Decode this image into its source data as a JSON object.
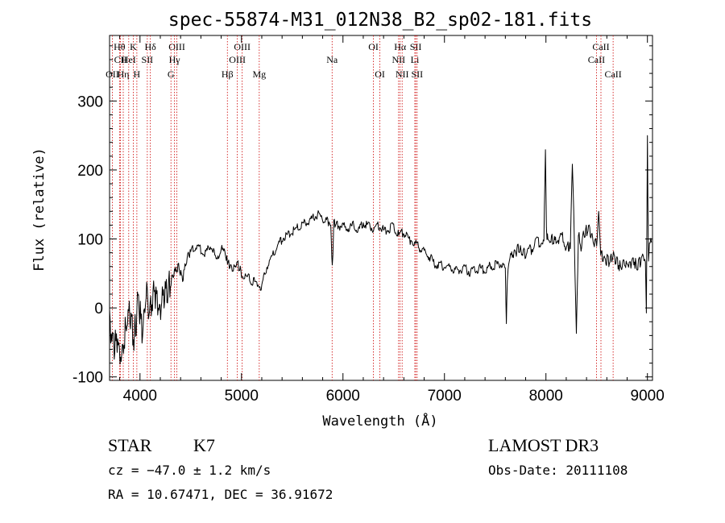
{
  "chart_data": {
    "type": "line",
    "title": "spec-55874-M31_012N38_B2_sp02-181.fits",
    "xlabel": "Wavelength (Å)",
    "ylabel": "Flux (relative)",
    "xlim": [
      3700,
      9050
    ],
    "ylim": [
      -105,
      395
    ],
    "x_ticks": [
      4000,
      5000,
      6000,
      7000,
      8000,
      9000
    ],
    "y_ticks": [
      -100,
      0,
      100,
      200,
      300
    ],
    "grid": false,
    "series": [
      {
        "color": "#000000",
        "x": [
          3700,
          3740,
          3780,
          3820,
          3860,
          3900,
          3940,
          3980,
          4020,
          4060,
          4100,
          4140,
          4180,
          4220,
          4260,
          4300,
          4340,
          4380,
          4420,
          4460,
          4500,
          4550,
          4600,
          4650,
          4700,
          4750,
          4800,
          4850,
          4880,
          4920,
          4960,
          5000,
          5050,
          5100,
          5150,
          5200,
          5250,
          5300,
          5350,
          5400,
          5450,
          5500,
          5550,
          5600,
          5650,
          5700,
          5750,
          5800,
          5850,
          5880,
          5895,
          5910,
          5950,
          6000,
          6050,
          6100,
          6150,
          6200,
          6250,
          6300,
          6350,
          6400,
          6450,
          6500,
          6550,
          6600,
          6650,
          6700,
          6750,
          6800,
          6850,
          6900,
          6950,
          7000,
          7050,
          7100,
          7150,
          7200,
          7250,
          7300,
          7350,
          7400,
          7450,
          7500,
          7550,
          7600,
          7610,
          7620,
          7640,
          7680,
          7720,
          7760,
          7800,
          7850,
          7900,
          7950,
          7980,
          7995,
          8005,
          8020,
          8060,
          8100,
          8150,
          8200,
          8240,
          8260,
          8280,
          8300,
          8320,
          8340,
          8380,
          8420,
          8460,
          8500,
          8520,
          8540,
          8580,
          8620,
          8660,
          8700,
          8740,
          8780,
          8820,
          8860,
          8900,
          8940,
          8960,
          8980,
          8990,
          9000,
          9010,
          9020,
          9040
        ],
        "y": [
          -20,
          -60,
          -40,
          -80,
          -30,
          0,
          -50,
          10,
          -30,
          20,
          -10,
          30,
          0,
          10,
          20,
          35,
          50,
          60,
          40,
          70,
          80,
          90,
          85,
          80,
          90,
          70,
          85,
          75,
          60,
          55,
          65,
          50,
          45,
          40,
          35,
          30,
          60,
          75,
          90,
          100,
          105,
          110,
          115,
          120,
          125,
          130,
          135,
          130,
          125,
          120,
          60,
          125,
          120,
          118,
          115,
          120,
          110,
          125,
          118,
          115,
          120,
          112,
          115,
          118,
          105,
          110,
          100,
          95,
          88,
          80,
          75,
          65,
          62,
          60,
          58,
          55,
          55,
          58,
          52,
          55,
          58,
          55,
          60,
          62,
          65,
          55,
          -20,
          40,
          72,
          78,
          85,
          82,
          78,
          85,
          95,
          92,
          98,
          230,
          110,
          95,
          100,
          95,
          105,
          90,
          85,
          215,
          100,
          -40,
          110,
          85,
          110,
          115,
          100,
          90,
          140,
          80,
          70,
          68,
          75,
          66,
          60,
          65,
          62,
          70,
          60,
          68,
          80,
          65,
          -5,
          250,
          60,
          100,
          95
        ]
      }
    ],
    "lines": [
      {
        "name": "Hθ",
        "x": 3798,
        "row": 1
      },
      {
        "name": "CII",
        "x": 3808,
        "row": 2
      },
      {
        "name": "OII",
        "x": 3727,
        "row": 3
      },
      {
        "name": "Hη",
        "x": 3835,
        "row": 3
      },
      {
        "name": "K",
        "x": 3934,
        "row": 1
      },
      {
        "name": "HeI",
        "x": 3889,
        "row": 2
      },
      {
        "name": "H",
        "x": 3969,
        "row": 3
      },
      {
        "name": "SII",
        "x": 4072,
        "row": 2
      },
      {
        "name": "Hδ",
        "x": 4102,
        "row": 1
      },
      {
        "name": "OIII",
        "x": 4363,
        "row": 1
      },
      {
        "name": "Hγ",
        "x": 4340,
        "row": 2
      },
      {
        "name": "G",
        "x": 4305,
        "row": 3
      },
      {
        "name": "Hβ",
        "x": 4861,
        "row": 3
      },
      {
        "name": "OIII",
        "x": 5007,
        "row": 1
      },
      {
        "name": "OIII",
        "x": 4959,
        "row": 2
      },
      {
        "name": "Mg",
        "x": 5175,
        "row": 3
      },
      {
        "name": "Na",
        "x": 5893,
        "row": 2
      },
      {
        "name": "OI",
        "x": 6300,
        "row": 1
      },
      {
        "name": "OI",
        "x": 6364,
        "row": 3
      },
      {
        "name": "Hα",
        "x": 6563,
        "row": 1
      },
      {
        "name": "NII",
        "x": 6548,
        "row": 2
      },
      {
        "name": "NII",
        "x": 6583,
        "row": 3
      },
      {
        "name": "SII",
        "x": 6717,
        "row": 1
      },
      {
        "name": "Li",
        "x": 6708,
        "row": 2
      },
      {
        "name": "SII",
        "x": 6731,
        "row": 3
      },
      {
        "name": "CaII",
        "x": 8498,
        "row": 2
      },
      {
        "name": "CaII",
        "x": 8542,
        "row": 1
      },
      {
        "name": "CaII",
        "x": 8662,
        "row": 3
      }
    ]
  },
  "info": {
    "object_class": "STAR",
    "subclass": "K7",
    "survey": "LAMOST DR3",
    "cz": "cz = −47.0 ± 1.2 km/s",
    "obs_date": "Obs-Date: 20111108",
    "coords": "RA =  10.67471, DEC =  36.91672"
  }
}
